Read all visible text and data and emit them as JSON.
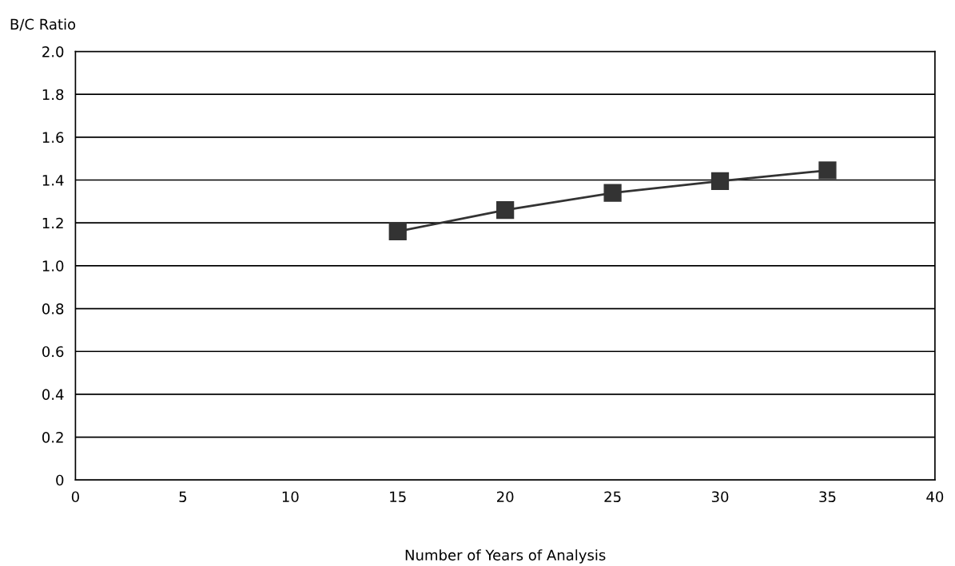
{
  "chart_data": {
    "type": "line",
    "xlabel": "Number of Years of Analysis",
    "ylabel": "B/C Ratio",
    "x": [
      15,
      20,
      25,
      30,
      35
    ],
    "series": [
      {
        "color": "#333333",
        "values": [
          1.16,
          1.26,
          1.34,
          1.395,
          1.445
        ]
      }
    ],
    "xlim": [
      0,
      40
    ],
    "xticks": [
      0,
      5,
      10,
      15,
      20,
      25,
      30,
      35,
      40
    ],
    "ylim": [
      0,
      2
    ],
    "yticks": [
      0,
      0.2,
      0.4,
      0.6,
      0.8,
      {
        "value": 1,
        "label": "1.0"
      },
      1.2,
      1.4,
      1.6,
      1.8,
      {
        "value": 2,
        "label": "2.0"
      }
    ],
    "grid": "y",
    "marker": "square",
    "line_style": "solid",
    "legend": false
  }
}
